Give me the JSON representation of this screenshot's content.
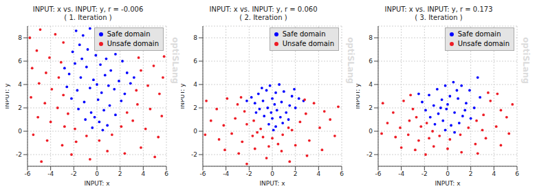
{
  "chart_data": [
    {
      "type": "scatter",
      "title": "INPUT: x vs. INPUT: y, r = -0.006",
      "subtitle": "( 1. Iteration )",
      "x_label": "INPUT: x",
      "y_label": "INPUT: y",
      "annotation": "optiSLang",
      "xlim": [
        -6,
        6
      ],
      "ylim": [
        -3,
        9
      ],
      "xticks": [
        -6,
        -4,
        -2,
        0,
        2,
        4,
        6
      ],
      "yticks": [
        -2,
        0,
        2,
        4,
        6,
        8
      ],
      "grid": true,
      "legend": "upper right",
      "series": [
        {
          "name": "Safe domain",
          "color": "#0000ff",
          "marker": "circle",
          "points": [
            [
              -1.8,
              8.6
            ],
            [
              -1.2,
              8.2
            ],
            [
              -0.6,
              8.8
            ],
            [
              -1.5,
              7.4
            ],
            [
              -0.8,
              7.0
            ],
            [
              -2.1,
              6.8
            ],
            [
              -0.1,
              6.5
            ],
            [
              0.8,
              6.2
            ],
            [
              1.6,
              6.6
            ],
            [
              2.2,
              6.0
            ],
            [
              -1.9,
              5.8
            ],
            [
              -0.9,
              5.5
            ],
            [
              0.3,
              5.7
            ],
            [
              1.2,
              5.2
            ],
            [
              2.6,
              5.0
            ],
            [
              -2.4,
              4.9
            ],
            [
              -1.4,
              4.6
            ],
            [
              -0.3,
              4.4
            ],
            [
              0.7,
              4.8
            ],
            [
              1.9,
              4.3
            ],
            [
              2.9,
              4.1
            ],
            [
              -2.6,
              3.8
            ],
            [
              -1.7,
              3.5
            ],
            [
              -0.6,
              3.7
            ],
            [
              0.4,
              3.3
            ],
            [
              1.5,
              3.6
            ],
            [
              2.4,
              3.2
            ],
            [
              -2.2,
              2.8
            ],
            [
              -1.1,
              2.5
            ],
            [
              0.1,
              2.7
            ],
            [
              1.1,
              2.2
            ],
            [
              2.1,
              2.6
            ],
            [
              -1.6,
              1.9
            ],
            [
              -0.5,
              1.6
            ],
            [
              0.6,
              1.8
            ],
            [
              1.6,
              1.4
            ],
            [
              -1.0,
              1.0
            ],
            [
              0.2,
              0.8
            ],
            [
              0.9,
              0.5
            ],
            [
              -0.4,
              0.3
            ],
            [
              0.5,
              0.1
            ],
            [
              -1.3,
              6.2
            ],
            [
              0.0,
              4.0
            ],
            [
              1.0,
              3.9
            ],
            [
              -0.2,
              1.2
            ],
            [
              3.2,
              4.6
            ],
            [
              -2.8,
              5.4
            ]
          ]
        },
        {
          "name": "Unsafe domain",
          "color": "#ee1c25",
          "marker": "circle",
          "points": [
            [
              -5.8,
              8.0
            ],
            [
              -4.9,
              8.7
            ],
            [
              -3.6,
              8.3
            ],
            [
              -2.9,
              7.6
            ],
            [
              -5.2,
              6.9
            ],
            [
              -4.1,
              6.3
            ],
            [
              -3.1,
              5.9
            ],
            [
              -5.6,
              5.4
            ],
            [
              -4.4,
              5.0
            ],
            [
              -3.3,
              4.6
            ],
            [
              -5.0,
              4.1
            ],
            [
              -3.9,
              3.6
            ],
            [
              -2.9,
              3.1
            ],
            [
              -5.7,
              2.9
            ],
            [
              -4.5,
              2.4
            ],
            [
              -3.4,
              2.0
            ],
            [
              -2.5,
              1.5
            ],
            [
              -5.1,
              1.2
            ],
            [
              -4.0,
              0.8
            ],
            [
              -2.8,
              0.4
            ],
            [
              -1.9,
              0.2
            ],
            [
              -5.5,
              -0.3
            ],
            [
              -4.3,
              -0.8
            ],
            [
              -3.0,
              -1.2
            ],
            [
              -1.8,
              -0.9
            ],
            [
              -0.9,
              -0.4
            ],
            [
              0.2,
              -0.8
            ],
            [
              1.3,
              -0.3
            ],
            [
              2.1,
              0.4
            ],
            [
              3.1,
              0.9
            ],
            [
              4.2,
              0.2
            ],
            [
              5.3,
              -0.5
            ],
            [
              -2.2,
              -2.0
            ],
            [
              -0.6,
              -2.4
            ],
            [
              0.9,
              -1.7
            ],
            [
              2.4,
              -1.9
            ],
            [
              3.8,
              -1.4
            ],
            [
              5.0,
              -2.2
            ],
            [
              -4.8,
              -2.6
            ],
            [
              2.6,
              1.6
            ],
            [
              3.5,
              2.3
            ],
            [
              4.6,
              1.9
            ],
            [
              5.6,
              1.3
            ],
            [
              3.4,
              3.5
            ],
            [
              4.4,
              3.9
            ],
            [
              5.4,
              3.2
            ],
            [
              3.8,
              5.2
            ],
            [
              4.9,
              5.6
            ],
            [
              5.7,
              4.6
            ],
            [
              3.6,
              6.3
            ],
            [
              5.8,
              6.4
            ]
          ]
        }
      ]
    },
    {
      "type": "scatter",
      "title": "INPUT: x vs. INPUT: y, r = 0.060",
      "subtitle": "( 2. Iteration )",
      "x_label": "INPUT: x",
      "y_label": "INPUT: y",
      "annotation": "optiSLang",
      "xlim": [
        -6,
        6
      ],
      "ylim": [
        -3,
        9
      ],
      "xticks": [
        -6,
        -4,
        -2,
        0,
        2,
        4,
        6
      ],
      "yticks": [
        -2,
        0,
        2,
        4,
        6,
        8
      ],
      "grid": true,
      "legend": "upper right",
      "series": [
        {
          "name": "Safe domain",
          "color": "#0000ff",
          "marker": "circle",
          "points": [
            [
              -1.8,
              2.9
            ],
            [
              -1.2,
              3.2
            ],
            [
              -0.5,
              3.5
            ],
            [
              0.3,
              3.3
            ],
            [
              1.0,
              3.4
            ],
            [
              1.7,
              3.0
            ],
            [
              2.3,
              2.8
            ],
            [
              -1.5,
              2.4
            ],
            [
              -0.8,
              2.6
            ],
            [
              0.0,
              2.8
            ],
            [
              0.8,
              2.5
            ],
            [
              1.5,
              2.2
            ],
            [
              2.0,
              2.0
            ],
            [
              -1.1,
              1.9
            ],
            [
              -0.4,
              2.0
            ],
            [
              0.4,
              1.8
            ],
            [
              1.2,
              1.6
            ],
            [
              -0.7,
              1.3
            ],
            [
              0.0,
              1.1
            ],
            [
              0.7,
              1.2
            ],
            [
              1.4,
              1.0
            ],
            [
              -0.3,
              0.6
            ],
            [
              0.3,
              0.4
            ],
            [
              0.9,
              0.7
            ],
            [
              -1.4,
              1.6
            ],
            [
              0.1,
              0.1
            ],
            [
              0.6,
              4.0
            ],
            [
              -0.2,
              3.9
            ],
            [
              1.9,
              3.6
            ],
            [
              -2.2,
              2.6
            ],
            [
              2.7,
              2.6
            ],
            [
              -0.9,
              3.7
            ],
            [
              0.2,
              2.3
            ],
            [
              -0.1,
              1.6
            ]
          ]
        },
        {
          "name": "Unsafe domain",
          "color": "#ee1c25",
          "marker": "circle",
          "points": [
            [
              -5.7,
              2.6
            ],
            [
              -4.8,
              1.9
            ],
            [
              -3.9,
              2.8
            ],
            [
              -3.0,
              2.3
            ],
            [
              -2.4,
              1.7
            ],
            [
              -5.3,
              0.9
            ],
            [
              -4.2,
              0.5
            ],
            [
              -3.2,
              1.1
            ],
            [
              -2.2,
              0.6
            ],
            [
              -1.6,
              0.9
            ],
            [
              -1.0,
              0.2
            ],
            [
              -5.8,
              -0.3
            ],
            [
              -4.6,
              -0.7
            ],
            [
              -3.5,
              -0.2
            ],
            [
              -2.6,
              -0.9
            ],
            [
              -1.7,
              -0.4
            ],
            [
              -0.8,
              -0.5
            ],
            [
              0.0,
              -0.6
            ],
            [
              0.9,
              -0.3
            ],
            [
              1.7,
              0.1
            ],
            [
              2.4,
              0.8
            ],
            [
              2.9,
              1.5
            ],
            [
              -4.1,
              -1.6
            ],
            [
              -2.9,
              -1.9
            ],
            [
              -1.5,
              -1.5
            ],
            [
              -0.3,
              -1.3
            ],
            [
              0.8,
              -1.7
            ],
            [
              2.0,
              -1.2
            ],
            [
              3.2,
              -0.8
            ],
            [
              4.1,
              0.3
            ],
            [
              5.0,
              1.0
            ],
            [
              5.7,
              2.1
            ],
            [
              3.6,
              2.4
            ],
            [
              4.5,
              1.7
            ],
            [
              3.0,
              -2.1
            ],
            [
              1.5,
              -2.6
            ],
            [
              -0.5,
              -2.3
            ],
            [
              -2.2,
              -2.8
            ],
            [
              4.3,
              -1.6
            ],
            [
              5.4,
              -0.4
            ],
            [
              2.8,
              2.7
            ],
            [
              -2.7,
              2.9
            ],
            [
              1.4,
              0.3
            ],
            [
              -1.3,
              -0.1
            ],
            [
              0.5,
              -1.1
            ]
          ]
        }
      ]
    },
    {
      "type": "scatter",
      "title": "INPUT: x vs. INPUT: y, r = 0.173",
      "subtitle": "( 3. Iteration )",
      "x_label": "INPUT: x",
      "y_label": "INPUT: y",
      "annotation": "optiSLang",
      "xlim": [
        -6,
        6
      ],
      "ylim": [
        -3,
        9
      ],
      "xticks": [
        -6,
        -4,
        -2,
        0,
        2,
        4,
        6
      ],
      "yticks": [
        -2,
        0,
        2,
        4,
        6,
        8
      ],
      "grid": true,
      "legend": "upper right",
      "series": [
        {
          "name": "Safe domain",
          "color": "#0000ff",
          "marker": "circle",
          "points": [
            [
              -2.2,
              2.5
            ],
            [
              -1.6,
              3.1
            ],
            [
              -0.9,
              3.6
            ],
            [
              -0.2,
              3.9
            ],
            [
              0.5,
              4.2
            ],
            [
              1.2,
              3.9
            ],
            [
              1.9,
              3.5
            ],
            [
              2.6,
              4.6
            ],
            [
              -1.9,
              1.8
            ],
            [
              -1.2,
              2.2
            ],
            [
              -0.5,
              2.7
            ],
            [
              0.2,
              3.0
            ],
            [
              0.9,
              2.8
            ],
            [
              1.6,
              2.4
            ],
            [
              2.3,
              2.0
            ],
            [
              -1.5,
              1.2
            ],
            [
              -0.8,
              1.5
            ],
            [
              -0.1,
              1.9
            ],
            [
              0.6,
              1.6
            ],
            [
              1.3,
              1.3
            ],
            [
              2.0,
              1.1
            ],
            [
              -1.1,
              0.6
            ],
            [
              -0.4,
              0.9
            ],
            [
              0.3,
              0.5
            ],
            [
              1.0,
              0.7
            ],
            [
              -0.2,
              0.1
            ],
            [
              0.6,
              -0.1
            ],
            [
              2.8,
              2.9
            ],
            [
              -2.5,
              3.2
            ],
            [
              0.0,
              2.3
            ],
            [
              0.8,
              3.5
            ],
            [
              -0.6,
              2.0
            ],
            [
              1.5,
              1.8
            ]
          ]
        },
        {
          "name": "Unsafe domain",
          "color": "#ee1c25",
          "marker": "circle",
          "points": [
            [
              -5.6,
              2.4
            ],
            [
              -4.7,
              1.6
            ],
            [
              -3.8,
              2.6
            ],
            [
              -3.0,
              1.9
            ],
            [
              -2.7,
              1.2
            ],
            [
              -5.2,
              0.7
            ],
            [
              -4.1,
              0.3
            ],
            [
              -3.3,
              0.9
            ],
            [
              -2.3,
              0.4
            ],
            [
              -1.8,
              0.7
            ],
            [
              -1.3,
              0.0
            ],
            [
              -5.7,
              -0.2
            ],
            [
              -4.5,
              -0.5
            ],
            [
              -3.4,
              -0.3
            ],
            [
              -2.5,
              -0.8
            ],
            [
              -1.6,
              -0.6
            ],
            [
              -0.7,
              -0.4
            ],
            [
              0.2,
              -0.7
            ],
            [
              1.1,
              -0.3
            ],
            [
              1.8,
              0.3
            ],
            [
              2.5,
              0.9
            ],
            [
              3.1,
              1.4
            ],
            [
              -4.0,
              -1.4
            ],
            [
              -2.8,
              -1.6
            ],
            [
              -1.2,
              -1.3
            ],
            [
              0.0,
              -1.5
            ],
            [
              1.2,
              -1.8
            ],
            [
              2.4,
              -1.1
            ],
            [
              3.3,
              -0.6
            ],
            [
              4.2,
              0.4
            ],
            [
              5.1,
              1.2
            ],
            [
              5.6,
              2.3
            ],
            [
              3.7,
              2.6
            ],
            [
              4.6,
              1.8
            ],
            [
              3.5,
              3.3
            ],
            [
              4.3,
              3.2
            ],
            [
              2.6,
              -1.9
            ],
            [
              -1.9,
              -2.0
            ],
            [
              5.3,
              -0.2
            ],
            [
              4.6,
              -1.2
            ],
            [
              3.0,
              0.1
            ],
            [
              -3.2,
              3.1
            ]
          ]
        }
      ]
    }
  ]
}
